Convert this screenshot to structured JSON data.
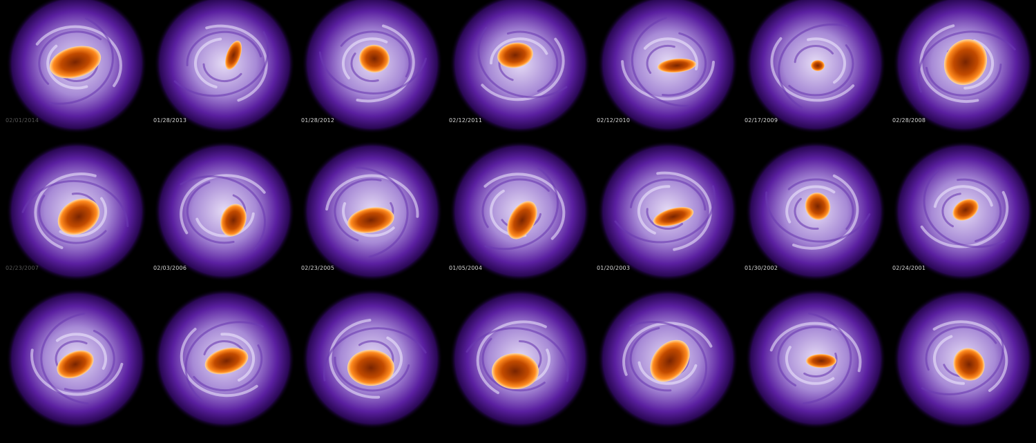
{
  "title": "",
  "colors": {
    "background": "#000000",
    "vortex_core": "#c24a00",
    "vortex_hot": "#ff8a1e",
    "swirl_light": "#e6dcf5",
    "halo_purple": "#5a1fa0",
    "deep_purple": "#2a0855"
  },
  "panels": [
    {
      "date": "02/01/2014",
      "dim": true
    },
    {
      "date": "01/28/2013",
      "dim": false
    },
    {
      "date": "01/28/2012",
      "dim": false
    },
    {
      "date": "02/12/2011",
      "dim": false
    },
    {
      "date": "02/12/2010",
      "dim": false
    },
    {
      "date": "02/17/2009",
      "dim": false
    },
    {
      "date": "02/28/2008",
      "dim": false
    },
    {
      "date": "02/23/2007",
      "dim": true
    },
    {
      "date": "02/03/2006",
      "dim": false
    },
    {
      "date": "02/23/2005",
      "dim": false
    },
    {
      "date": "01/05/2004",
      "dim": false
    },
    {
      "date": "01/20/2003",
      "dim": false
    },
    {
      "date": "01/30/2002",
      "dim": false
    },
    {
      "date": "02/24/2001",
      "dim": false
    },
    {
      "date": "",
      "dim": false
    },
    {
      "date": "",
      "dim": false
    },
    {
      "date": "",
      "dim": false
    },
    {
      "date": "",
      "dim": false
    },
    {
      "date": "",
      "dim": false
    },
    {
      "date": "",
      "dim": false
    },
    {
      "date": "",
      "dim": false
    }
  ]
}
